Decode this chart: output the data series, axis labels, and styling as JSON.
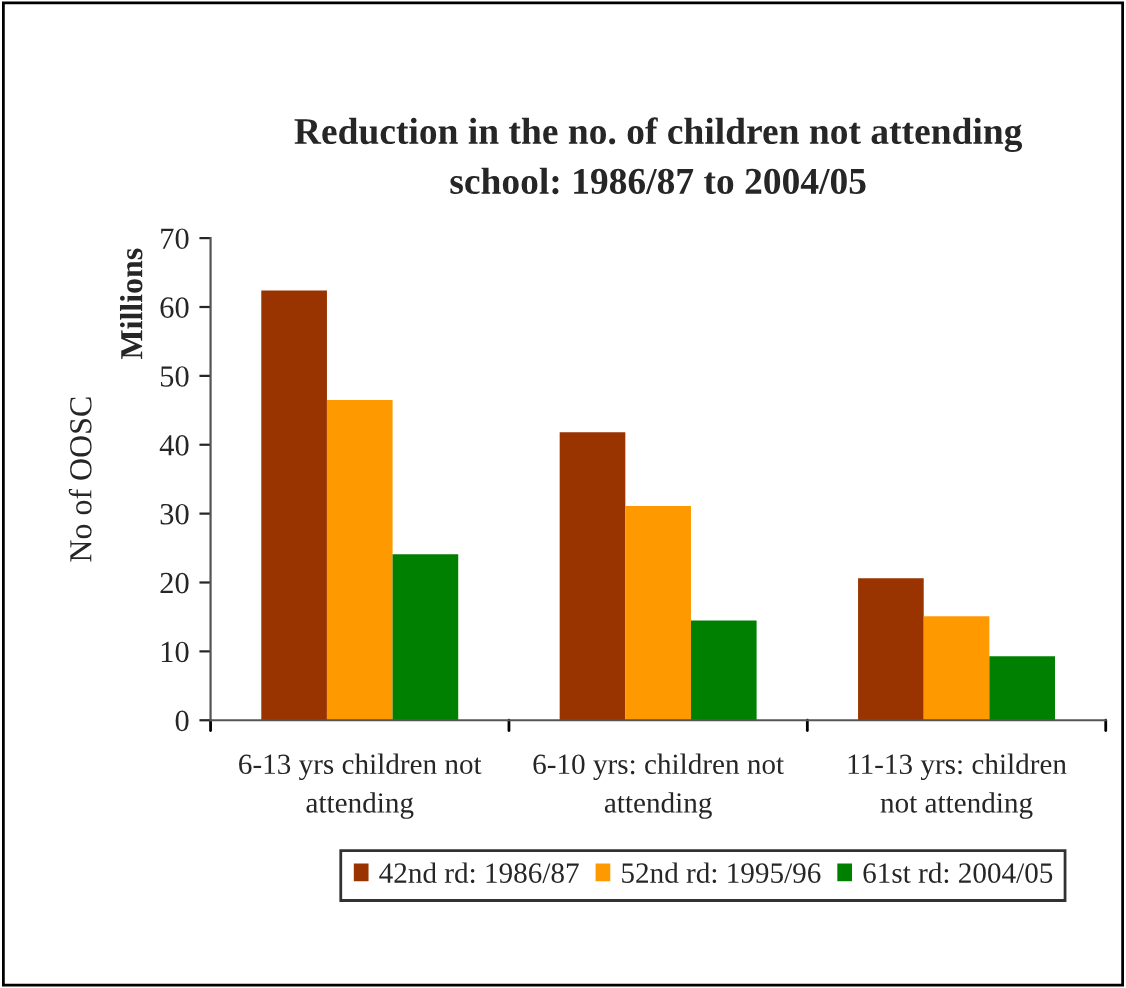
{
  "chart_data": {
    "type": "bar",
    "title": "Reduction in the no. of children not attending\nschool: 1986/87 to 2004/05",
    "ylabel": "No of OOSC",
    "annotations": [
      "Millions"
    ],
    "categories": [
      "6-13 yrs children not\nattending",
      "6-10 yrs: children not\nattending",
      "11-13 yrs: children\nnot attending"
    ],
    "series": [
      {
        "name": "42nd rd: 1986/87",
        "color": "#993300",
        "values": [
          62.4,
          41.8,
          20.6
        ]
      },
      {
        "name": "52nd rd: 1995/96",
        "color": "#ff9900",
        "values": [
          46.5,
          31.1,
          15.1
        ]
      },
      {
        "name": "61st rd: 2004/05",
        "color": "#008000",
        "values": [
          24.1,
          14.5,
          9.3
        ]
      }
    ],
    "ylim": [
      0,
      70
    ],
    "yticks": [
      0,
      10,
      20,
      30,
      40,
      50,
      60,
      70
    ],
    "grid": false,
    "legend": "bottom"
  }
}
